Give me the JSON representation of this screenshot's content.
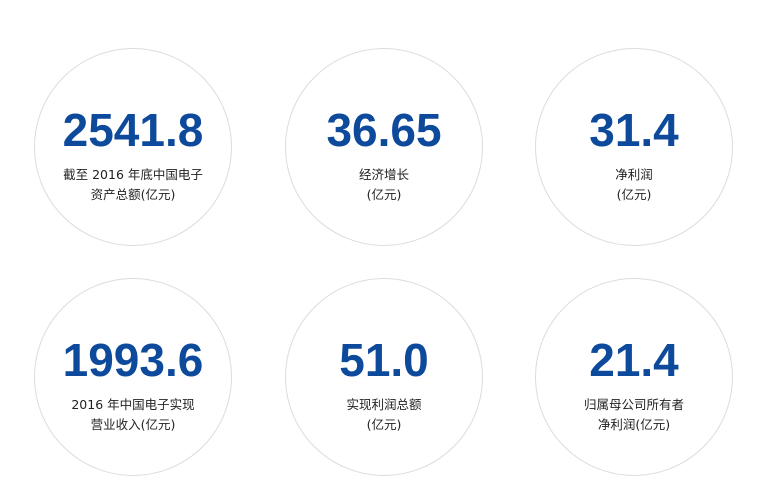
{
  "stats": [
    {
      "value": "2541.8",
      "label_line1": "截至 2016 年底中国电子",
      "label_line2": "资产总额(亿元)"
    },
    {
      "value": "36.65",
      "label_line1": "经济增长",
      "label_line2": "(亿元)"
    },
    {
      "value": "31.4",
      "label_line1": "净利润",
      "label_line2": "(亿元)"
    },
    {
      "value": "1993.6",
      "label_line1": "2016 年中国电子实现",
      "label_line2": "营业收入(亿元)"
    },
    {
      "value": "51.0",
      "label_line1": "实现利润总额",
      "label_line2": "(亿元)"
    },
    {
      "value": "21.4",
      "label_line1": "归属母公司所有者",
      "label_line2": "净利润(亿元)"
    }
  ],
  "colors": {
    "value_blue": "#0d4a9b",
    "label_text": "#222222",
    "circle_border": "#dcdcdc"
  }
}
